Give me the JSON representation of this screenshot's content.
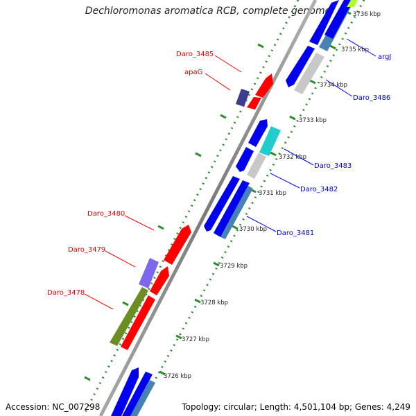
{
  "title": "Dechloromonas aromatica RCB, complete genome",
  "footer": {
    "accession": "Accession: NC_007298",
    "topology": "Topology: circular; Length: 4,501,104 bp; Genes: 4,249"
  },
  "scale": {
    "unit": "kbp",
    "ticks": [
      "3726 kbp",
      "3727 kbp",
      "3728 kbp",
      "3729 kbp",
      "3730 kbp",
      "3731 kbp",
      "3732 kbp",
      "3733 kbp",
      "3734 kbp",
      "3735 kbp",
      "3736 kbp"
    ]
  },
  "genes_forward": [
    {
      "label": "Daro_3485",
      "color": "#ff0000"
    },
    {
      "label": "apaG",
      "color": "#ff0000"
    },
    {
      "label": "Daro_3480",
      "color": "#ff0000"
    },
    {
      "label": "Daro_3479",
      "color": "#ff0000"
    },
    {
      "label": "Daro_3478",
      "color": "#ff0000"
    }
  ],
  "genes_reverse": [
    {
      "label": "argJ",
      "color": "#0000ee"
    },
    {
      "label": "Daro_3486",
      "color": "#0000ee"
    },
    {
      "label": "Daro_3483",
      "color": "#0000ee"
    },
    {
      "label": "Daro_3482",
      "color": "#0000ee"
    },
    {
      "label": "Daro_3481",
      "color": "#0000ee"
    }
  ],
  "colors": {
    "cds_forward": "#ff0000",
    "cds_reverse": "#0000ee",
    "backbone": "#888888",
    "tick_dots": "#2e8b2e",
    "reverse_annotation": "#4682b4",
    "grey_feature": "#c8c8c8",
    "cyan_feature": "#22cccc",
    "olive_feature": "#6b8e23",
    "purple_feature": "#7b68ee",
    "dark_purple_feature": "#3d3d8f",
    "lime_feature": "#adff2f"
  }
}
